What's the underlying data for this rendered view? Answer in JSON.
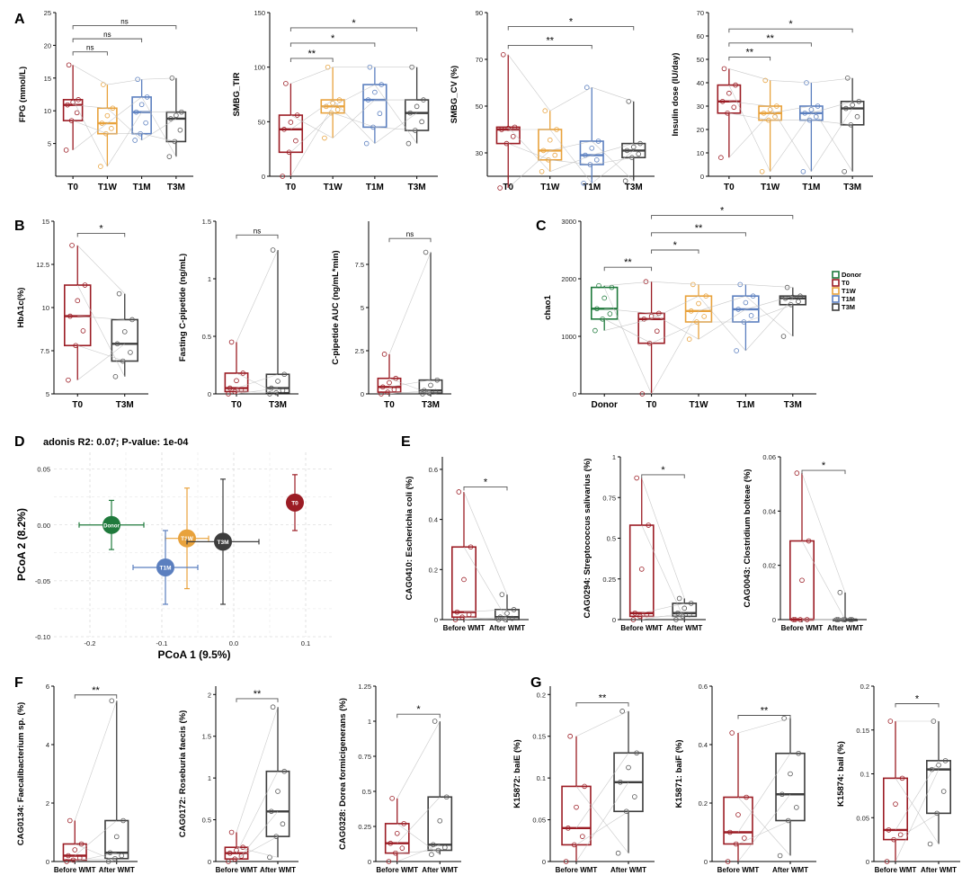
{
  "figure": {
    "colors": {
      "T0": "#9b1c24",
      "T1W": "#e8a23c",
      "T1M": "#5b7fbf",
      "T3M": "#3d3d3d",
      "Donor": "#1f7a3c",
      "Before WMT": "#9b1c24",
      "After WMT": "#3d3d3d"
    }
  },
  "chart_data": [
    {
      "id": "A1",
      "panel_label": "A",
      "type": "box",
      "ylabel": "FPG (mmol/L)",
      "categories": [
        "T0",
        "T1W",
        "T1M",
        "T3M"
      ],
      "ylim": [
        0,
        25
      ],
      "yticks": [
        5,
        10,
        15,
        20,
        25
      ],
      "boxes": [
        {
          "group": "T0",
          "min": 4,
          "q1": 8.5,
          "median": 10.9,
          "q3": 11.7,
          "max": 17
        },
        {
          "group": "T1W",
          "min": 1.5,
          "q1": 6.5,
          "median": 8.1,
          "q3": 10.4,
          "max": 14
        },
        {
          "group": "T1M",
          "min": 5.5,
          "q1": 6.5,
          "median": 9.8,
          "q3": 12.1,
          "max": 14.8
        },
        {
          "group": "T3M",
          "min": 3,
          "q1": 5.3,
          "median": 8.8,
          "q3": 9.8,
          "max": 15
        }
      ],
      "brackets": [
        {
          "from": "T0",
          "to": "T1W",
          "label": "ns",
          "y": 19
        },
        {
          "from": "T0",
          "to": "T1M",
          "label": "ns",
          "y": 21
        },
        {
          "from": "T0",
          "to": "T3M",
          "label": "ns",
          "y": 23
        }
      ]
    },
    {
      "id": "A2",
      "type": "box",
      "ylabel": "SMBG_TIR",
      "categories": [
        "T0",
        "T1W",
        "T1M",
        "T3M"
      ],
      "ylim": [
        0,
        150
      ],
      "yticks": [
        0,
        50,
        100,
        150
      ],
      "boxes": [
        {
          "group": "T0",
          "min": 0,
          "q1": 22,
          "median": 43,
          "q3": 56,
          "max": 85
        },
        {
          "group": "T1W",
          "min": 35,
          "q1": 58,
          "median": 64,
          "q3": 70,
          "max": 100
        },
        {
          "group": "T1M",
          "min": 30,
          "q1": 45,
          "median": 70,
          "q3": 84,
          "max": 100
        },
        {
          "group": "T3M",
          "min": 30,
          "q1": 42,
          "median": 58,
          "q3": 70,
          "max": 100
        }
      ],
      "brackets": [
        {
          "from": "T0",
          "to": "T1W",
          "label": "**",
          "y": 108
        },
        {
          "from": "T0",
          "to": "T1M",
          "label": "*",
          "y": 122
        },
        {
          "from": "T0",
          "to": "T3M",
          "label": "*",
          "y": 136
        }
      ]
    },
    {
      "id": "A3",
      "type": "box",
      "ylabel": "SMBG_CV (%)",
      "categories": [
        "T0",
        "T1W",
        "T1M",
        "T3M"
      ],
      "ylim": [
        20,
        90
      ],
      "yticks": [
        30,
        50,
        70,
        90
      ],
      "boxes": [
        {
          "group": "T0",
          "min": 15,
          "q1": 34,
          "median": 40,
          "q3": 41,
          "max": 72
        },
        {
          "group": "T1W",
          "min": 22,
          "q1": 27,
          "median": 31,
          "q3": 40,
          "max": 48
        },
        {
          "group": "T1M",
          "min": 17,
          "q1": 25,
          "median": 29,
          "q3": 35,
          "max": 58
        },
        {
          "group": "T3M",
          "min": 18,
          "q1": 28,
          "median": 31,
          "q3": 34,
          "max": 52
        }
      ],
      "brackets": [
        {
          "from": "T0",
          "to": "T1M",
          "label": "**",
          "y": 76
        },
        {
          "from": "T0",
          "to": "T3M",
          "label": "*",
          "y": 84
        }
      ]
    },
    {
      "id": "A4",
      "type": "box",
      "ylabel": "Insulin dose (IU/day)",
      "categories": [
        "T0",
        "T1W",
        "T1M",
        "T3M"
      ],
      "ylim": [
        0,
        70
      ],
      "yticks": [
        0,
        10,
        20,
        30,
        40,
        50,
        60,
        70
      ],
      "boxes": [
        {
          "group": "T0",
          "min": 8,
          "q1": 27,
          "median": 32,
          "q3": 39,
          "max": 46
        },
        {
          "group": "T1W",
          "min": 2,
          "q1": 24,
          "median": 27,
          "q3": 30,
          "max": 41
        },
        {
          "group": "T1M",
          "min": 2,
          "q1": 24,
          "median": 27,
          "q3": 30,
          "max": 40
        },
        {
          "group": "T3M",
          "min": 2,
          "q1": 22,
          "median": 29,
          "q3": 32,
          "max": 42
        }
      ],
      "brackets": [
        {
          "from": "T0",
          "to": "T1W",
          "label": "**",
          "y": 51
        },
        {
          "from": "T0",
          "to": "T1M",
          "label": "**",
          "y": 57
        },
        {
          "from": "T0",
          "to": "T3M",
          "label": "*",
          "y": 63
        }
      ]
    },
    {
      "id": "B1",
      "panel_label": "B",
      "type": "box",
      "ylabel": "HbA1c(%)",
      "categories": [
        "T0",
        "T3M"
      ],
      "ylim": [
        5,
        15
      ],
      "yticks": [
        5.0,
        7.5,
        10.0,
        12.5,
        15.0
      ],
      "boxes": [
        {
          "group": "T0",
          "min": 5.8,
          "q1": 7.8,
          "median": 9.5,
          "q3": 11.3,
          "max": 13.6
        },
        {
          "group": "T3M",
          "min": 6,
          "q1": 6.9,
          "median": 7.9,
          "q3": 9.3,
          "max": 10.8
        }
      ],
      "brackets": [
        {
          "from": "T0",
          "to": "T3M",
          "label": "*",
          "y": 14.3
        }
      ]
    },
    {
      "id": "B2",
      "type": "box",
      "ylabel": "Fasting C-pipetide (ng/mL)",
      "categories": [
        "T0",
        "T3M"
      ],
      "ylim": [
        0,
        1.5
      ],
      "yticks": [
        0.0,
        0.5,
        1.0,
        1.5
      ],
      "boxes": [
        {
          "group": "T0",
          "min": 0,
          "q1": 0.02,
          "median": 0.05,
          "q3": 0.18,
          "max": 0.45
        },
        {
          "group": "T3M",
          "min": 0,
          "q1": 0.01,
          "median": 0.05,
          "q3": 0.17,
          "max": 1.25
        }
      ],
      "brackets": [
        {
          "from": "T0",
          "to": "T3M",
          "label": "ns",
          "y": 1.38
        }
      ]
    },
    {
      "id": "B3",
      "type": "box",
      "ylabel": "C-pipetide AUC (ng/mL*min)",
      "categories": [
        "T0",
        "T3M"
      ],
      "ylim": [
        0,
        10
      ],
      "yticks": [
        0.0,
        2.5,
        5.0,
        7.5
      ],
      "boxes": [
        {
          "group": "T0",
          "min": 0,
          "q1": 0.1,
          "median": 0.4,
          "q3": 0.9,
          "max": 2.3
        },
        {
          "group": "T3M",
          "min": 0,
          "q1": 0.05,
          "median": 0.2,
          "q3": 0.8,
          "max": 8.2
        }
      ],
      "brackets": [
        {
          "from": "T0",
          "to": "T3M",
          "label": "ns",
          "y": 9
        }
      ]
    },
    {
      "id": "C",
      "panel_label": "C",
      "type": "box",
      "ylabel": "chao1",
      "categories": [
        "Donor",
        "T0",
        "T1W",
        "T1M",
        "T3M"
      ],
      "ylim": [
        0,
        3000
      ],
      "yticks": [
        0,
        1000,
        2000,
        3000
      ],
      "boxes": [
        {
          "group": "Donor",
          "min": 1100,
          "q1": 1300,
          "median": 1480,
          "q3": 1850,
          "max": 1880
        },
        {
          "group": "T0",
          "min": 0,
          "q1": 880,
          "median": 1300,
          "q3": 1400,
          "max": 1950
        },
        {
          "group": "T1W",
          "min": 950,
          "q1": 1250,
          "median": 1440,
          "q3": 1700,
          "max": 1900
        },
        {
          "group": "T1M",
          "min": 750,
          "q1": 1250,
          "median": 1470,
          "q3": 1700,
          "max": 1900
        },
        {
          "group": "T3M",
          "min": 1000,
          "q1": 1550,
          "median": 1660,
          "q3": 1700,
          "max": 1850
        }
      ],
      "brackets": [
        {
          "from": "Donor",
          "to": "T0",
          "label": "**",
          "y": 2200
        },
        {
          "from": "T0",
          "to": "T1W",
          "label": "*",
          "y": 2500
        },
        {
          "from": "T0",
          "to": "T1M",
          "label": "**",
          "y": 2800
        },
        {
          "from": "T0",
          "to": "T3M",
          "label": "*",
          "y": 3100
        }
      ],
      "legend": [
        "Donor",
        "T0",
        "T1W",
        "T1M",
        "T3M"
      ]
    },
    {
      "id": "D",
      "panel_label": "D",
      "type": "scatter",
      "title": "adonis R2: 0.07; P-value: 1e-04",
      "xlabel": "PCoA 1 (9.5%)",
      "ylabel": "PCoA 2 (8.2%)",
      "xlim": [
        -0.25,
        0.14
      ],
      "ylim": [
        -0.1,
        0.065
      ],
      "xticks": [
        -0.2,
        -0.1,
        0.0,
        0.1
      ],
      "yticks": [
        -0.1,
        -0.05,
        0.0,
        0.05
      ],
      "points": [
        {
          "group": "Donor",
          "x": -0.17,
          "y": 0.0,
          "xerr": 0.045,
          "yerr": 0.022
        },
        {
          "group": "T0",
          "x": 0.085,
          "y": 0.02,
          "xerr": 0.005,
          "yerr": 0.025
        },
        {
          "group": "T1W",
          "x": -0.065,
          "y": -0.012,
          "xerr": 0.03,
          "yerr": 0.045
        },
        {
          "group": "T3M",
          "x": -0.015,
          "y": -0.015,
          "xerr": 0.05,
          "yerr": 0.056
        },
        {
          "group": "T1M",
          "x": -0.095,
          "y": -0.038,
          "xerr": 0.045,
          "yerr": 0.033
        }
      ]
    },
    {
      "id": "E1",
      "panel_label": "E",
      "type": "box",
      "ylabel": "CAG0410: Escherichia coli (%)",
      "categories": [
        "Before WMT",
        "After WMT"
      ],
      "ylim": [
        0,
        0.65
      ],
      "yticks": [
        0.0,
        0.2,
        0.4,
        0.6
      ],
      "boxes": [
        {
          "group": "Before WMT",
          "min": 0,
          "q1": 0.01,
          "median": 0.03,
          "q3": 0.29,
          "max": 0.51
        },
        {
          "group": "After WMT",
          "min": 0,
          "q1": 0.0,
          "median": 0.01,
          "q3": 0.04,
          "max": 0.1
        }
      ],
      "brackets": [
        {
          "from": "Before WMT",
          "to": "After WMT",
          "label": "*",
          "y": 0.53
        }
      ]
    },
    {
      "id": "E2",
      "type": "box",
      "ylabel": "CAG0294: Streptococcus salivarius (%)",
      "categories": [
        "Before WMT",
        "After WMT"
      ],
      "ylim": [
        0,
        1.0
      ],
      "yticks": [
        0.0,
        0.25,
        0.5,
        0.75,
        1.0
      ],
      "boxes": [
        {
          "group": "Before WMT",
          "min": 0,
          "q1": 0.02,
          "median": 0.04,
          "q3": 0.58,
          "max": 0.87
        },
        {
          "group": "After WMT",
          "min": 0,
          "q1": 0.02,
          "median": 0.04,
          "q3": 0.1,
          "max": 0.13
        }
      ],
      "brackets": [
        {
          "from": "Before WMT",
          "to": "After WMT",
          "label": "*",
          "y": 0.89
        }
      ]
    },
    {
      "id": "E3",
      "type": "box",
      "ylabel": "CAG0043: Clostridium bolteae (%)",
      "categories": [
        "Before WMT",
        "After WMT"
      ],
      "ylim": [
        0,
        0.06
      ],
      "yticks": [
        0.0,
        0.02,
        0.04,
        0.06
      ],
      "boxes": [
        {
          "group": "Before WMT",
          "min": 0,
          "q1": 0.0,
          "median": 0.0,
          "q3": 0.029,
          "max": 0.054
        },
        {
          "group": "After WMT",
          "min": 0,
          "q1": 0.0,
          "median": 0.0,
          "q3": 0.0,
          "max": 0.01
        }
      ],
      "brackets": [
        {
          "from": "Before WMT",
          "to": "After WMT",
          "label": "*",
          "y": 0.055
        }
      ]
    },
    {
      "id": "F1",
      "panel_label": "F",
      "type": "box",
      "ylabel": "CAG0134: Faecalibacterium sp. (%)",
      "categories": [
        "Before WMT",
        "After WMT"
      ],
      "ylim": [
        0,
        6
      ],
      "yticks": [
        0,
        2,
        4,
        6
      ],
      "boxes": [
        {
          "group": "Before WMT",
          "min": 0,
          "q1": 0.05,
          "median": 0.2,
          "q3": 0.6,
          "max": 1.4
        },
        {
          "group": "After WMT",
          "min": 0,
          "q1": 0.1,
          "median": 0.3,
          "q3": 1.4,
          "max": 5.5
        }
      ],
      "brackets": [
        {
          "from": "Before WMT",
          "to": "After WMT",
          "label": "**",
          "y": 5.7
        }
      ]
    },
    {
      "id": "F2",
      "type": "box",
      "ylabel": "CAG0172: Roseburia faecis (%)",
      "categories": [
        "Before WMT",
        "After WMT"
      ],
      "ylim": [
        0,
        2.1
      ],
      "yticks": [
        0.0,
        0.5,
        1.0,
        1.5,
        2.0
      ],
      "boxes": [
        {
          "group": "Before WMT",
          "min": 0,
          "q1": 0.03,
          "median": 0.1,
          "q3": 0.17,
          "max": 0.35
        },
        {
          "group": "After WMT",
          "min": 0.05,
          "q1": 0.3,
          "median": 0.6,
          "q3": 1.08,
          "max": 1.85
        }
      ],
      "brackets": [
        {
          "from": "Before WMT",
          "to": "After WMT",
          "label": "**",
          "y": 1.95
        }
      ]
    },
    {
      "id": "F3",
      "type": "box",
      "ylabel": "CAG0328: Dorea formicigenerans (%)",
      "categories": [
        "Before WMT",
        "After WMT"
      ],
      "ylim": [
        0,
        1.25
      ],
      "yticks": [
        0.0,
        0.25,
        0.5,
        0.75,
        1.0,
        1.25
      ],
      "boxes": [
        {
          "group": "Before WMT",
          "min": 0,
          "q1": 0.06,
          "median": 0.13,
          "q3": 0.27,
          "max": 0.45
        },
        {
          "group": "After WMT",
          "min": 0.05,
          "q1": 0.08,
          "median": 0.12,
          "q3": 0.46,
          "max": 1.0
        }
      ],
      "brackets": [
        {
          "from": "Before WMT",
          "to": "After WMT",
          "label": "*",
          "y": 1.05
        }
      ]
    },
    {
      "id": "G1",
      "panel_label": "G",
      "type": "box",
      "ylabel": "K15872: baiE (%)",
      "categories": [
        "Before WMT",
        "After WMT"
      ],
      "ylim": [
        0,
        0.21
      ],
      "yticks": [
        0.0,
        0.05,
        0.1,
        0.15,
        0.2
      ],
      "boxes": [
        {
          "group": "Before WMT",
          "min": 0,
          "q1": 0.02,
          "median": 0.04,
          "q3": 0.09,
          "max": 0.15
        },
        {
          "group": "After WMT",
          "min": 0.01,
          "q1": 0.06,
          "median": 0.095,
          "q3": 0.13,
          "max": 0.18
        }
      ],
      "brackets": [
        {
          "from": "Before WMT",
          "to": "After WMT",
          "label": "**",
          "y": 0.19
        }
      ]
    },
    {
      "id": "G2",
      "type": "box",
      "ylabel": "K15871: baiF (%)",
      "categories": [
        "Before WMT",
        "After WMT"
      ],
      "ylim": [
        0,
        0.6
      ],
      "yticks": [
        0.0,
        0.2,
        0.4,
        0.6
      ],
      "boxes": [
        {
          "group": "Before WMT",
          "min": 0,
          "q1": 0.06,
          "median": 0.1,
          "q3": 0.22,
          "max": 0.44
        },
        {
          "group": "After WMT",
          "min": 0.02,
          "q1": 0.14,
          "median": 0.23,
          "q3": 0.37,
          "max": 0.49
        }
      ],
      "brackets": [
        {
          "from": "Before WMT",
          "to": "After WMT",
          "label": "**",
          "y": 0.5
        }
      ]
    },
    {
      "id": "G3",
      "type": "box",
      "ylabel": "K15874: baiI (%)",
      "categories": [
        "Before WMT",
        "After WMT"
      ],
      "ylim": [
        0,
        0.2
      ],
      "yticks": [
        0.0,
        0.05,
        0.1,
        0.15,
        0.2
      ],
      "boxes": [
        {
          "group": "Before WMT",
          "min": 0,
          "q1": 0.025,
          "median": 0.036,
          "q3": 0.095,
          "max": 0.16
        },
        {
          "group": "After WMT",
          "min": 0.02,
          "q1": 0.055,
          "median": 0.105,
          "q3": 0.115,
          "max": 0.16
        }
      ],
      "brackets": [
        {
          "from": "Before WMT",
          "to": "After WMT",
          "label": "*",
          "y": 0.18
        }
      ]
    }
  ]
}
